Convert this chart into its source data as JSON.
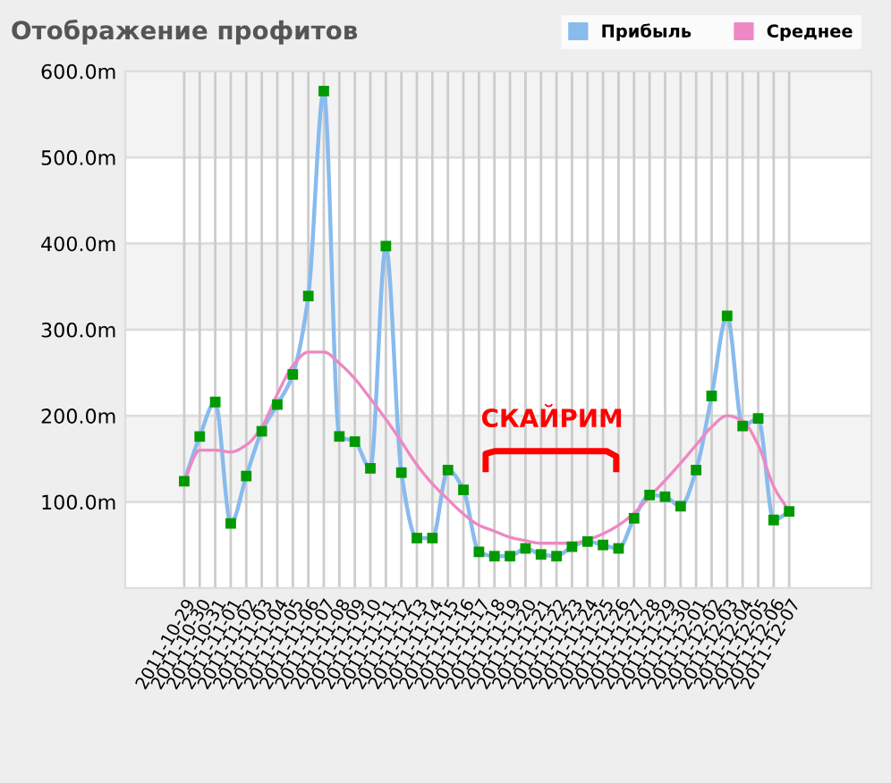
{
  "chart_data": {
    "type": "line",
    "title": "Отображение профитов",
    "categories": [
      "2011-10-29",
      "2011-10-30",
      "2011-10-31",
      "2011-11-01",
      "2011-11-02",
      "2011-11-03",
      "2011-11-04",
      "2011-11-05",
      "2011-11-06",
      "2011-11-07",
      "2011-11-08",
      "2011-11-09",
      "2011-11-10",
      "2011-11-11",
      "2011-11-12",
      "2011-11-13",
      "2011-11-14",
      "2011-11-15",
      "2011-11-16",
      "2011-11-17",
      "2011-11-18",
      "2011-11-19",
      "2011-11-20",
      "2011-11-21",
      "2011-11-22",
      "2011-11-23",
      "2011-11-24",
      "2011-11-25",
      "2011-11-26",
      "2011-11-27",
      "2011-11-28",
      "2011-11-29",
      "2011-11-30",
      "2011-12-01",
      "2011-12-02",
      "2011-12-03",
      "2011-12-04",
      "2011-12-05",
      "2011-12-06",
      "2011-12-07"
    ],
    "series": [
      {
        "name": "Прибыль",
        "color": "#88bbee",
        "marker": "square",
        "values": [
          124,
          176,
          216,
          75,
          130,
          182,
          213,
          248,
          339,
          577,
          176,
          170,
          139,
          397,
          134,
          58,
          58,
          137,
          114,
          42,
          37,
          37,
          46,
          39,
          37,
          48,
          54,
          50,
          46,
          81,
          108,
          106,
          95,
          137,
          223,
          316,
          188,
          197,
          79,
          89
        ]
      },
      {
        "name": "Среднее",
        "color": "#ee88c4",
        "marker": "none",
        "values": [
          124,
          160,
          160,
          158,
          166,
          187,
          225,
          258,
          274,
          274,
          261,
          243,
          220,
          196,
          170,
          143,
          121,
          103,
          86,
          73,
          66,
          59,
          55,
          52,
          52,
          52,
          56,
          63,
          73,
          87,
          106,
          125,
          145,
          166,
          187,
          200,
          194,
          166,
          118,
          89
        ]
      }
    ],
    "ylim": [
      0,
      600
    ],
    "yticks": [
      {
        "value": 100,
        "label": "100.0m"
      },
      {
        "value": 200,
        "label": "200.0m"
      },
      {
        "value": 300,
        "label": "300.0m"
      },
      {
        "value": 400,
        "label": "400.0m"
      },
      {
        "value": 500,
        "label": "500.0m"
      },
      {
        "value": 600,
        "label": "600.0m"
      }
    ],
    "grid": true,
    "legend": "top right",
    "annotations": [
      "СКАЙРИМ"
    ]
  }
}
